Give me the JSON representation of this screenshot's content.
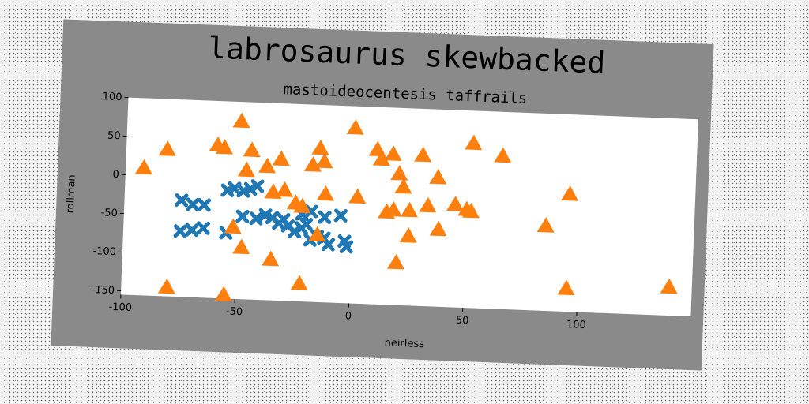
{
  "chart_data": {
    "type": "scatter",
    "title": "labrosaurus skewbacked",
    "subtitle": "mastoideocentesis taffrails",
    "xlabel": "heirless",
    "ylabel": "rollman",
    "xlim": [
      -100,
      150
    ],
    "ylim": [
      -155,
      100
    ],
    "xticks": [
      -100,
      -50,
      0,
      50,
      100
    ],
    "yticks": [
      100,
      50,
      0,
      -50,
      -100,
      -150
    ],
    "grid": false,
    "legend": "none",
    "series": [
      {
        "marker": "X",
        "color": "#1f77b4",
        "points": [
          [
            -75,
            -30
          ],
          [
            -70,
            -35
          ],
          [
            -65,
            -35
          ],
          [
            -55,
            -15
          ],
          [
            -52,
            -12
          ],
          [
            -48,
            -15
          ],
          [
            -45,
            -12
          ],
          [
            -42,
            -8
          ],
          [
            -75,
            -70
          ],
          [
            -70,
            -68
          ],
          [
            -65,
            -65
          ],
          [
            -55,
            -70
          ],
          [
            -48,
            -48
          ],
          [
            -42,
            -50
          ],
          [
            -38,
            -45
          ],
          [
            -35,
            -48
          ],
          [
            -32,
            -55
          ],
          [
            -30,
            -50
          ],
          [
            -28,
            -58
          ],
          [
            -25,
            -65
          ],
          [
            -22,
            -60
          ],
          [
            -20,
            -55
          ],
          [
            -18,
            -75
          ],
          [
            -15,
            -70
          ],
          [
            -12,
            -72
          ],
          [
            -10,
            -80
          ],
          [
            -22,
            -42
          ],
          [
            -18,
            -38
          ],
          [
            -12,
            -45
          ],
          [
            -5,
            -42
          ],
          [
            -3,
            -75
          ],
          [
            -2,
            -82
          ]
        ]
      },
      {
        "marker": "^",
        "color": "#ff7f0e",
        "points": [
          [
            -92,
            10
          ],
          [
            -82,
            35
          ],
          [
            -60,
            43
          ],
          [
            -57,
            40
          ],
          [
            -50,
            75
          ],
          [
            -45,
            38
          ],
          [
            -47,
            12
          ],
          [
            -38,
            18
          ],
          [
            -32,
            28
          ],
          [
            -35,
            -15
          ],
          [
            -30,
            -12
          ],
          [
            -25,
            -28
          ],
          [
            -22,
            -32
          ],
          [
            -18,
            22
          ],
          [
            -12,
            -15
          ],
          [
            -15,
            44
          ],
          [
            -13,
            27
          ],
          [
            2,
            -17
          ],
          [
            0,
            72
          ],
          [
            10,
            45
          ],
          [
            12,
            33
          ],
          [
            17,
            40
          ],
          [
            20,
            15
          ],
          [
            22,
            -2
          ],
          [
            15,
            -35
          ],
          [
            18,
            -32
          ],
          [
            25,
            -32
          ],
          [
            30,
            40
          ],
          [
            33,
            -25
          ],
          [
            37,
            12
          ],
          [
            38,
            -55
          ],
          [
            45,
            -22
          ],
          [
            50,
            -28
          ],
          [
            52,
            -30
          ],
          [
            52,
            58
          ],
          [
            65,
            43
          ],
          [
            -52,
            -62
          ],
          [
            -48,
            -88
          ],
          [
            -35,
            -102
          ],
          [
            -22,
            -132
          ],
          [
            -15,
            -68
          ],
          [
            -80,
            -143
          ],
          [
            -55,
            -150
          ],
          [
            20,
            -100
          ],
          [
            25,
            -65
          ],
          [
            85,
            -45
          ],
          [
            95,
            -3
          ],
          [
            95,
            -125
          ],
          [
            140,
            -118
          ]
        ]
      }
    ]
  }
}
